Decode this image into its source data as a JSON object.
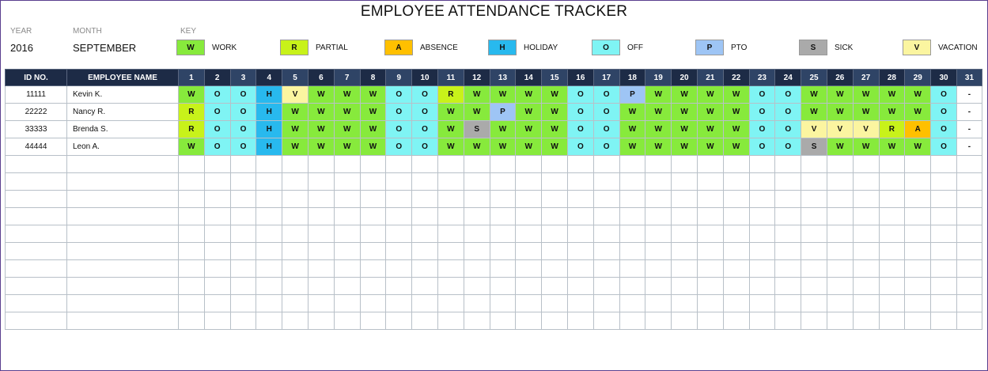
{
  "title": "EMPLOYEE ATTENDANCE TRACKER",
  "year_label": "YEAR",
  "year_value": "2016",
  "month_label": "MONTH",
  "month_value": "SEPTEMBER",
  "key_label": "KEY",
  "key": [
    {
      "code": "W",
      "label": "WORK",
      "color": "#87ea3c"
    },
    {
      "code": "R",
      "label": "PARTIAL",
      "color": "#c8f21a"
    },
    {
      "code": "A",
      "label": "ABSENCE",
      "color": "#ffc000"
    },
    {
      "code": "H",
      "label": "HOLIDAY",
      "color": "#28b9ee"
    },
    {
      "code": "O",
      "label": "OFF",
      "color": "#7ff4f4"
    },
    {
      "code": "P",
      "label": "PTO",
      "color": "#9ec5f5"
    },
    {
      "code": "S",
      "label": "SICK",
      "color": "#aaaaaa"
    },
    {
      "code": "V",
      "label": "VACATION",
      "color": "#fbf5a0"
    }
  ],
  "table": {
    "id_header": "ID NO.",
    "name_header": "EMPLOYEE NAME",
    "days": [
      "1",
      "2",
      "3",
      "4",
      "5",
      "6",
      "7",
      "8",
      "9",
      "10",
      "11",
      "12",
      "13",
      "14",
      "15",
      "16",
      "17",
      "18",
      "19",
      "20",
      "21",
      "22",
      "23",
      "24",
      "25",
      "26",
      "27",
      "28",
      "29",
      "30",
      "31"
    ],
    "rows": [
      {
        "id": "11111",
        "name": "Kevin K.",
        "marks": [
          "W",
          "O",
          "O",
          "H",
          "V",
          "W",
          "W",
          "W",
          "O",
          "O",
          "R",
          "W",
          "W",
          "W",
          "W",
          "O",
          "O",
          "P",
          "W",
          "W",
          "W",
          "W",
          "O",
          "O",
          "W",
          "W",
          "W",
          "W",
          "W",
          "O",
          "-"
        ]
      },
      {
        "id": "22222",
        "name": "Nancy R.",
        "marks": [
          "R",
          "O",
          "O",
          "H",
          "W",
          "W",
          "W",
          "W",
          "O",
          "O",
          "W",
          "W",
          "P",
          "W",
          "W",
          "O",
          "O",
          "W",
          "W",
          "W",
          "W",
          "W",
          "O",
          "O",
          "W",
          "W",
          "W",
          "W",
          "W",
          "O",
          "-"
        ]
      },
      {
        "id": "33333",
        "name": "Brenda S.",
        "marks": [
          "R",
          "O",
          "O",
          "H",
          "W",
          "W",
          "W",
          "W",
          "O",
          "O",
          "W",
          "S",
          "W",
          "W",
          "W",
          "O",
          "O",
          "W",
          "W",
          "W",
          "W",
          "W",
          "O",
          "O",
          "V",
          "V",
          "V",
          "R",
          "A",
          "O",
          "-"
        ]
      },
      {
        "id": "44444",
        "name": "Leon A.",
        "marks": [
          "W",
          "O",
          "O",
          "H",
          "W",
          "W",
          "W",
          "W",
          "O",
          "O",
          "W",
          "W",
          "W",
          "W",
          "W",
          "O",
          "O",
          "W",
          "W",
          "W",
          "W",
          "W",
          "O",
          "O",
          "S",
          "W",
          "W",
          "W",
          "W",
          "O",
          "-"
        ]
      }
    ],
    "empty_rows": 10
  }
}
